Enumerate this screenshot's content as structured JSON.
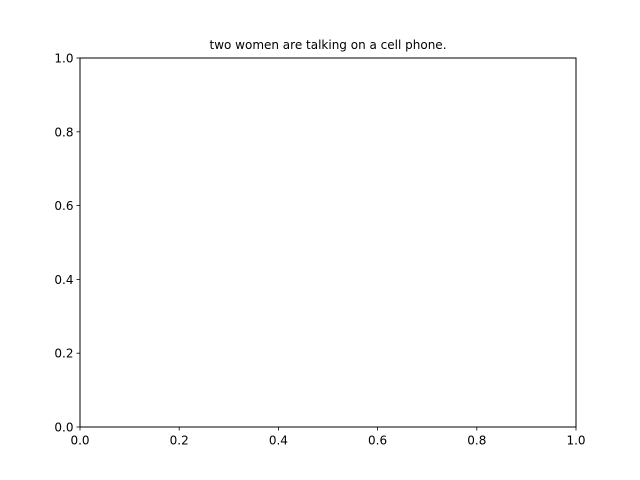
{
  "chart_data": {
    "type": "scatter",
    "title": "two women are talking on a cell phone.",
    "xlabel": "",
    "ylabel": "",
    "xlim": [
      0,
      1
    ],
    "ylim": [
      0,
      1
    ],
    "grid": false,
    "series": [],
    "x_ticks": [
      {
        "value": 0.0,
        "label": "0.0"
      },
      {
        "value": 0.2,
        "label": "0.2"
      },
      {
        "value": 0.4,
        "label": "0.4"
      },
      {
        "value": 0.6,
        "label": "0.6"
      },
      {
        "value": 0.8,
        "label": "0.8"
      },
      {
        "value": 1.0,
        "label": "1.0"
      }
    ],
    "y_ticks": [
      {
        "value": 0.0,
        "label": "0.0"
      },
      {
        "value": 0.2,
        "label": "0.2"
      },
      {
        "value": 0.4,
        "label": "0.4"
      },
      {
        "value": 0.6,
        "label": "0.6"
      },
      {
        "value": 0.8,
        "label": "0.8"
      },
      {
        "value": 1.0,
        "label": "1.0"
      }
    ],
    "colors": {
      "axes": "#000000",
      "text": "#000000",
      "background": "#ffffff"
    }
  }
}
